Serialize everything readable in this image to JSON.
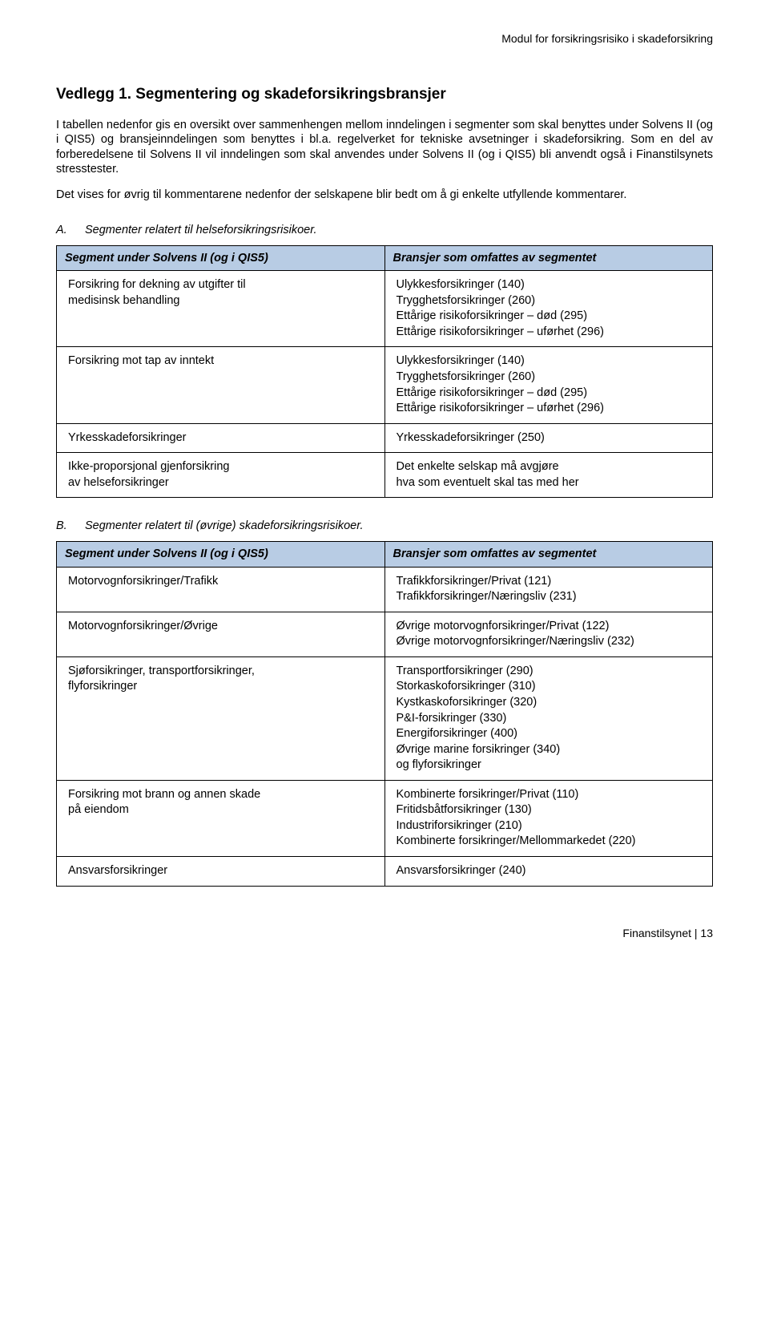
{
  "header": {
    "text": "Modul for forsikringsrisiko i skadeforsikring"
  },
  "title": "Vedlegg 1. Segmentering og skadeforsikringsbransjer",
  "paragraphs": {
    "p1": "I tabellen nedenfor gis en oversikt over sammenhengen mellom inndelingen i segmenter som skal benyttes under Solvens II (og i QIS5) og bransjeinndelingen som benyttes i bl.a. regelverket for tekniske avsetninger i skadeforsikring. Som en del av forberedelsene til Solvens II vil inndelingen som skal anvendes under Solvens II (og i QIS5) bli anvendt også i Finanstilsynets stresstester.",
    "p2": "Det vises for øvrig til kommentarene nedenfor der selskapene blir bedt om å gi enkelte utfyllende kommentarer."
  },
  "sectionA": {
    "letter": "A.",
    "title": "Segmenter relatert til helseforsikringsrisikoer.",
    "col1": "Segment under Solvens II (og i QIS5)",
    "col2": "Bransjer som omfattes av segmentet",
    "rows": [
      {
        "left": "Forsikring for dekning av utgifter til\nmedisinsk behandling",
        "right": "Ulykkesforsikringer (140)\nTrygghetsforsikringer (260)\nEttårige risikoforsikringer – død (295)\nEttårige risikoforsikringer – uførhet (296)"
      },
      {
        "left": "Forsikring mot tap av inntekt",
        "right": "Ulykkesforsikringer (140)\nTrygghetsforsikringer (260)\nEttårige risikoforsikringer – død (295)\nEttårige risikoforsikringer – uførhet (296)"
      },
      {
        "left": "Yrkesskadeforsikringer",
        "right": "Yrkesskadeforsikringer (250)"
      },
      {
        "left": "Ikke-proporsjonal gjenforsikring\nav helseforsikringer",
        "right": "Det enkelte selskap må avgjøre\nhva som eventuelt skal tas med her"
      }
    ]
  },
  "sectionB": {
    "letter": "B.",
    "title": "Segmenter relatert til (øvrige) skadeforsikringsrisikoer.",
    "col1": "Segment under Solvens II (og i QIS5)",
    "col2": "Bransjer som omfattes av segmentet",
    "rows": [
      {
        "left": "Motorvognforsikringer/Trafikk",
        "right": "Trafikkforsikringer/Privat (121)\nTrafikkforsikringer/Næringsliv (231)"
      },
      {
        "left": "Motorvognforsikringer/Øvrige",
        "right": "Øvrige motorvognforsikringer/Privat (122)\nØvrige motorvognforsikringer/Næringsliv (232)"
      },
      {
        "left": "Sjøforsikringer, transportforsikringer,\nflyforsikringer",
        "right": "Transportforsikringer (290)\nStorkaskoforsikringer (310)\nKystkaskoforsikringer (320)\nP&I-forsikringer (330)\nEnergiforsikringer (400)\nØvrige marine forsikringer (340)\nog flyforsikringer"
      },
      {
        "left": "Forsikring mot brann og annen skade\npå eiendom",
        "right": "Kombinerte forsikringer/Privat (110)\nFritidsbåtforsikringer (130)\nIndustriforsikringer (210)\nKombinerte forsikringer/Mellommarkedet (220)"
      },
      {
        "left": "Ansvarsforsikringer",
        "right": "Ansvarsforsikringer (240)"
      }
    ]
  },
  "footer": {
    "text": "Finanstilsynet | 13"
  }
}
